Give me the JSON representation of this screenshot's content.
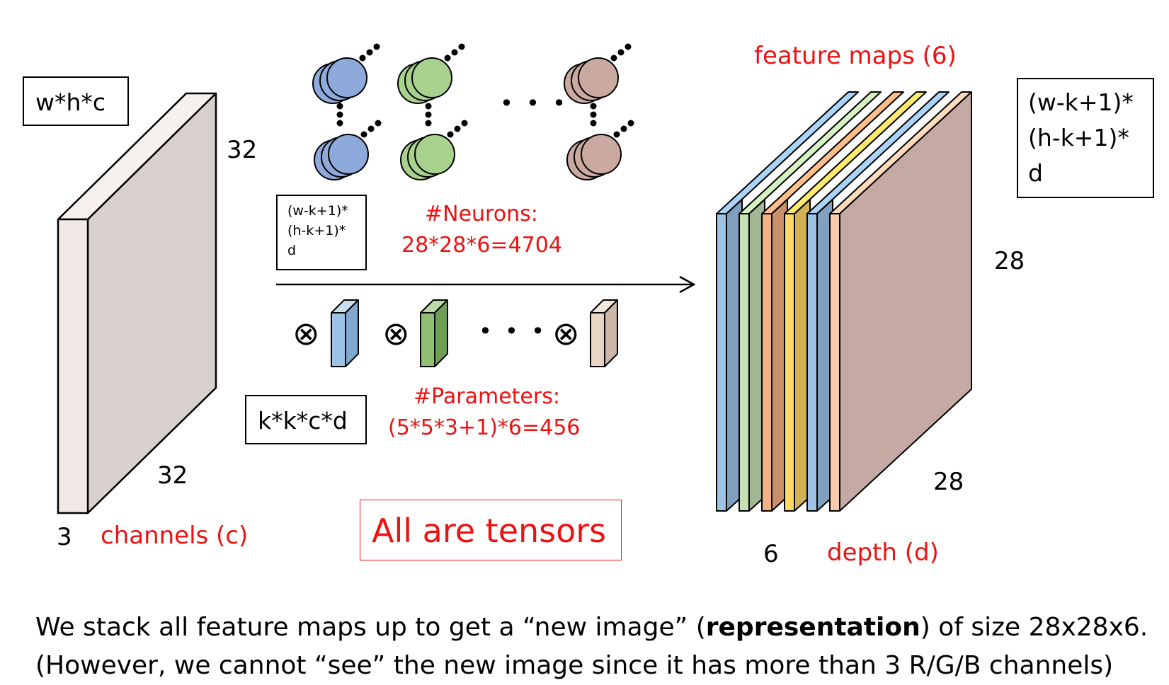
{
  "labels": {
    "input_dims_box": "w*h*c",
    "input_height": "32",
    "input_width": "32",
    "input_channels_num": "3",
    "input_channels_label": "channels (c)",
    "output_dims_small": [
      "(w-k+1)*",
      "(h-k+1)*",
      "d"
    ],
    "output_dims_right": [
      "(w-k+1)*",
      "(h-k+1)*",
      "d"
    ],
    "kernel_dims_box": "k*k*c*d",
    "feature_maps_label": "feature maps (6)",
    "output_height": "28",
    "output_width": "28",
    "output_depth_num": "6",
    "output_depth_label": "depth (d)",
    "neurons_title": "#Neurons:",
    "neurons_formula": "28*28*6=4704",
    "params_title": "#Parameters:",
    "params_formula": "(5*5*3+1)*6=456",
    "tensors_note": "All are tensors",
    "conv_symbol": "⊗",
    "ellipsis": "• • •"
  },
  "caption": {
    "line1_pre": "We stack all feature maps up to get a “new image” (",
    "line1_bold": "representation",
    "line1_post": ") of size 28x28x6.",
    "line2": "(However, we cannot “see” the new image since it has more than 3 R/G/B channels)"
  },
  "colors": {
    "accent_red": "#ee1111",
    "input_front": "#f2e8e6",
    "input_side": "#d8d0cd",
    "neuron_blue": "#8eaadb",
    "neuron_green": "#a9d18e",
    "neuron_brown": "#c9a9a0",
    "kernel_blue": "#9dc3e6",
    "kernel_green": "#8fbf72",
    "kernel_beige": "#e8d5c4",
    "map_colors": [
      "#9dc3e6",
      "#c5e0b4",
      "#f4b183",
      "#ffd966",
      "#9dc3e6",
      "#f8cbad"
    ]
  }
}
